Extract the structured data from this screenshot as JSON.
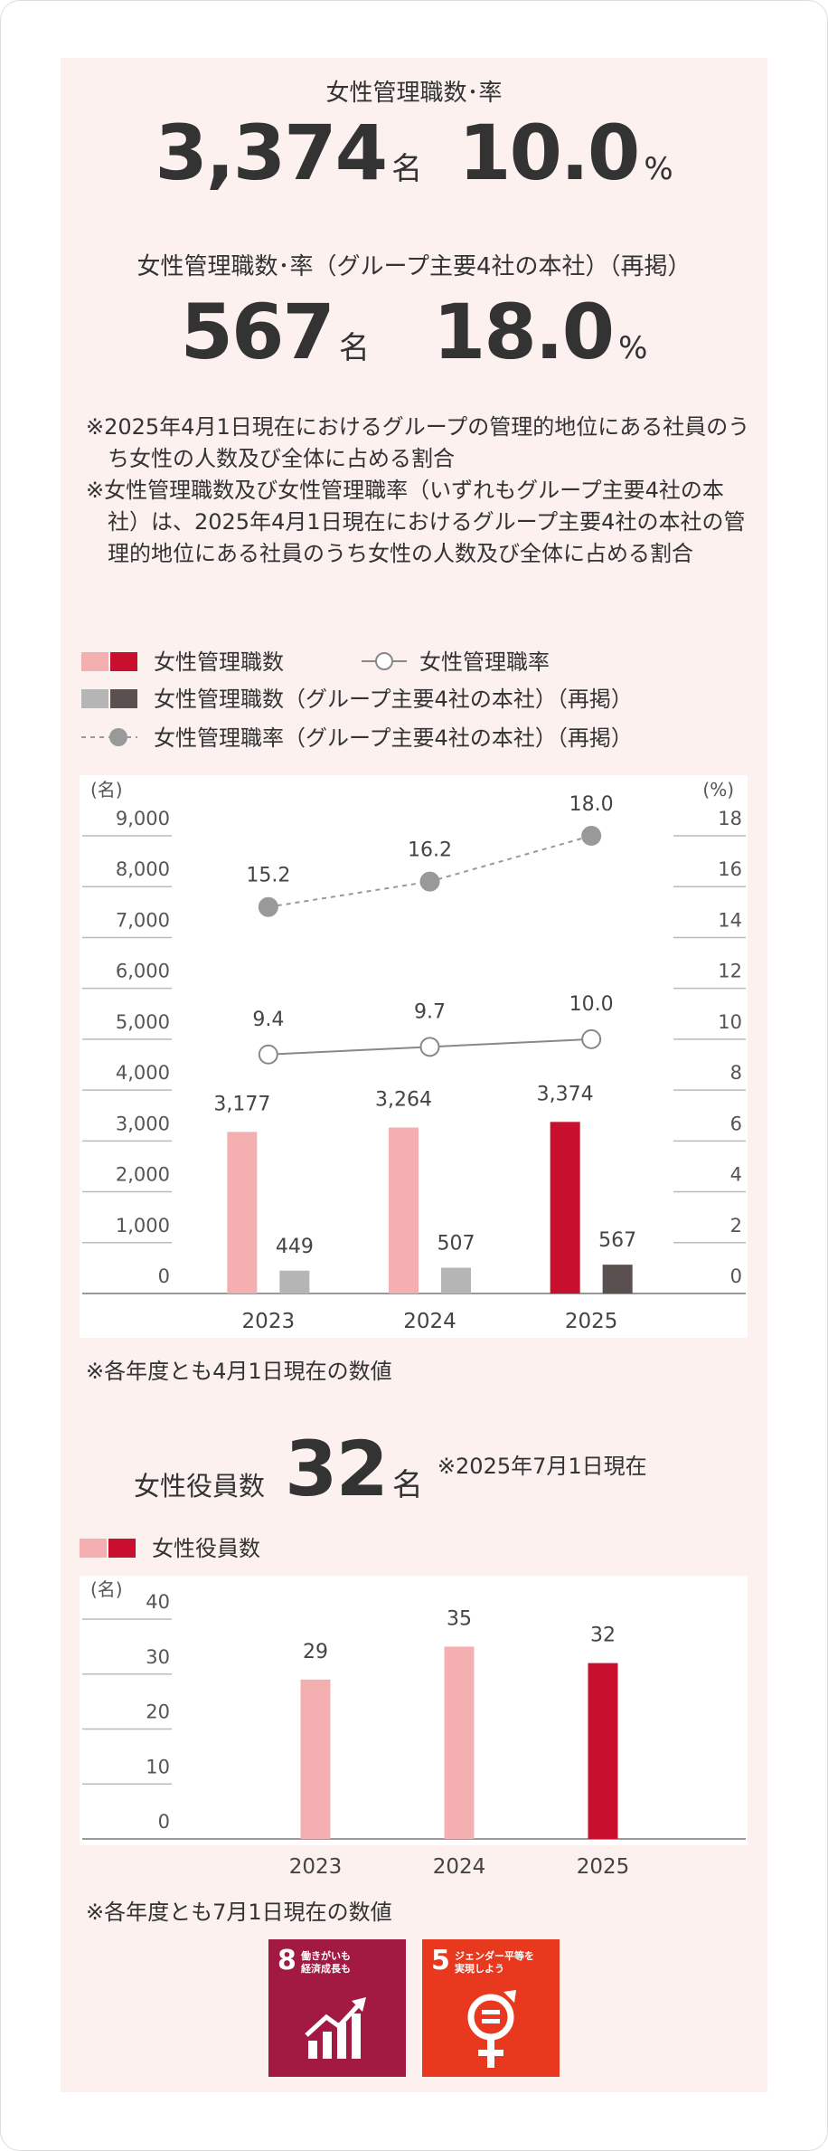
{
  "summary": {
    "title": "女性管理職数･率",
    "count": "3,374",
    "count_unit": "名",
    "rate": "10.0",
    "rate_unit": "%"
  },
  "summary_group": {
    "title": "女性管理職数･率（グループ主要4社の本社）（再掲）",
    "count": "567",
    "count_unit": "名",
    "rate": "18.0",
    "rate_unit": "%"
  },
  "notes": [
    "※2025年4月1日現在におけるグループの管理的地位にある社員のうち女性の人数及び全体に占める割合",
    "※女性管理職数及び女性管理職率（いずれもグループ主要4社の本社）は、2025年4月1日現在におけるグループ主要4社の本社の管理的地位にある社員のうち女性の人数及び全体に占める割合"
  ],
  "officers": {
    "title": "女性役員数",
    "count": "32",
    "unit": "名",
    "note": "※2025年7月1日現在"
  },
  "sdgs": [
    {
      "number": "8",
      "lines": [
        "働きがいも",
        "経済成長も"
      ],
      "color": "#a21942"
    },
    {
      "number": "5",
      "lines": [
        "ジェンダー平等を",
        "実現しよう"
      ],
      "color": "#e8391e"
    }
  ],
  "chart_data": [
    {
      "type": "bar",
      "ylabel": "(名)",
      "y2label": "(%)",
      "categories": [
        "2023",
        "2024",
        "2025"
      ],
      "ylim": [
        0,
        9000
      ],
      "yticks": [
        0,
        {
          "value": 1000,
          "label": "1,000"
        },
        {
          "value": 2000,
          "label": "2,000"
        },
        {
          "value": 3000,
          "label": "3,000"
        },
        {
          "value": 4000,
          "label": "4,000"
        },
        {
          "value": 5000,
          "label": "5,000"
        },
        {
          "value": 6000,
          "label": "6,000"
        },
        {
          "value": 7000,
          "label": "7,000"
        },
        {
          "value": 8000,
          "label": "8,000"
        },
        {
          "value": 9000,
          "label": "9,000"
        }
      ],
      "y2lim": [
        0,
        18
      ],
      "y2ticks": [
        0,
        2,
        4,
        6,
        8,
        10,
        12,
        14,
        16,
        18
      ],
      "series": [
        {
          "name": "女性管理職数",
          "type": "bar",
          "colors": [
            "#f4b0b0",
            "#f4b0b0",
            "#c8102e"
          ],
          "values": [
            3177,
            3264,
            3374
          ],
          "value_labels": [
            "3,177",
            "3,264",
            "3,374"
          ]
        },
        {
          "name": "女性管理職率",
          "type": "line",
          "axis": "y2",
          "color": "#888888",
          "dashed": false,
          "marker_filled": false,
          "values": [
            9.4,
            9.7,
            10.0
          ],
          "value_labels": [
            "9.4",
            "9.7",
            "10.0"
          ]
        },
        {
          "name": "女性管理職数（グループ主要4社の本社）（再掲）",
          "type": "bar",
          "colors": [
            "#b5b5b5",
            "#b5b5b5",
            "#5a5050"
          ],
          "values": [
            449,
            507,
            567
          ]
        },
        {
          "name": "女性管理職率（グループ主要4社の本社）（再掲）",
          "type": "line",
          "axis": "y2",
          "color": "#999999",
          "dashed": true,
          "marker_filled": true,
          "values": [
            15.2,
            16.2,
            18.0
          ],
          "value_labels": [
            "15.2",
            "16.2",
            "18.0"
          ]
        }
      ],
      "note": "※各年度とも4月1日現在の数値"
    },
    {
      "type": "bar",
      "ylabel": "(名)",
      "categories": [
        "2023",
        "2024",
        "2025"
      ],
      "ylim": [
        0,
        40
      ],
      "yticks": [
        0,
        10,
        20,
        30,
        40
      ],
      "series": [
        {
          "name": "女性役員数",
          "type": "bar",
          "colors": [
            "#f4b0b0",
            "#f4b0b0",
            "#c8102e"
          ],
          "values": [
            29,
            35,
            32
          ]
        }
      ],
      "note": "※各年度とも7月1日現在の数値"
    }
  ]
}
